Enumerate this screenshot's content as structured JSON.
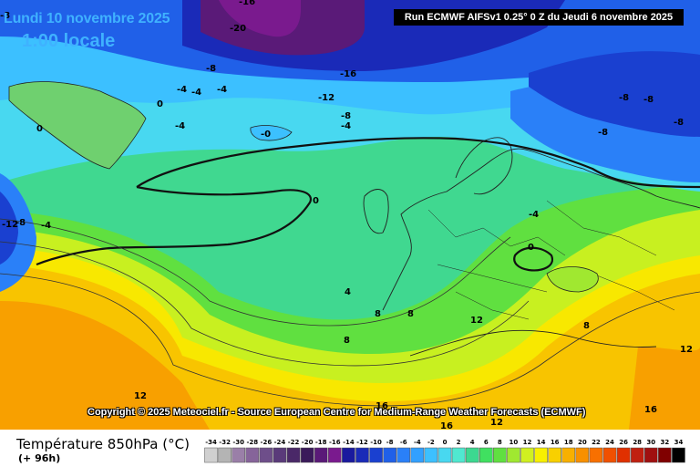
{
  "header": {
    "date": "Lundi 10 novembre 2025",
    "local_time": "1:00 locale",
    "run_info": "Run ECMWF AIFSv1 0.25° 0 Z du Jeudi 6 novembre 2025"
  },
  "copyright": "Copyright © 2025 Meteociel.fr - Source European Centre for Medium-Range Weather Forecasts (ECMWF)",
  "footer": {
    "variable": "Température 850hPa (°C)",
    "lead": "(+ 96h)"
  },
  "legend": {
    "values": [
      "-34",
      "-32",
      "-30",
      "-28",
      "-26",
      "-24",
      "-22",
      "-20",
      "-18",
      "-16",
      "-14",
      "-12",
      "-10",
      "-8",
      "-6",
      "-4",
      "-2",
      "0",
      "2",
      "4",
      "6",
      "8",
      "10",
      "12",
      "14",
      "16",
      "18",
      "20",
      "22",
      "24",
      "26",
      "28",
      "30",
      "32",
      "34"
    ],
    "colors": [
      "#d0d0d0",
      "#b4b4b4",
      "#9a7fa8",
      "#86649a",
      "#6e4e8a",
      "#5a3a7a",
      "#4a2868",
      "#3a1a5a",
      "#5a1a78",
      "#7a1a8e",
      "#1a1a9e",
      "#1a2ab8",
      "#1a40d0",
      "#2060e8",
      "#2a80f8",
      "#32a0ff",
      "#3cc0ff",
      "#48d8f0",
      "#50e8d0",
      "#3cd890",
      "#40e060",
      "#60e040",
      "#a0e830",
      "#d0f020",
      "#f8f000",
      "#f8d000",
      "#f8b000",
      "#f89000",
      "#f87000",
      "#f05000",
      "#e03000",
      "#c02010",
      "#a01010",
      "#800000",
      "#000000"
    ]
  },
  "map_labels": [
    {
      "text": "-16"
    },
    {
      "text": "-20"
    },
    {
      "text": "-8"
    },
    {
      "text": "-16"
    },
    {
      "text": "-12"
    },
    {
      "text": "-4"
    },
    {
      "text": "-4"
    },
    {
      "text": "-4"
    },
    {
      "text": "0"
    },
    {
      "text": "-4"
    },
    {
      "text": "0"
    },
    {
      "text": "-0"
    },
    {
      "text": "-8"
    },
    {
      "text": "-4"
    },
    {
      "text": "-8"
    },
    {
      "text": "-8"
    },
    {
      "text": "-8"
    },
    {
      "text": "-8"
    },
    {
      "text": "-4"
    },
    {
      "text": "0"
    },
    {
      "text": "0"
    },
    {
      "text": "-12"
    },
    {
      "text": "-8"
    },
    {
      "text": "-4"
    },
    {
      "text": "4"
    },
    {
      "text": "8"
    },
    {
      "text": "8"
    },
    {
      "text": "8"
    },
    {
      "text": "12"
    },
    {
      "text": "12"
    },
    {
      "text": "16"
    },
    {
      "text": "16"
    },
    {
      "text": "12"
    },
    {
      "text": "16"
    },
    {
      "text": "8"
    },
    {
      "text": "12"
    },
    {
      "text": "-8"
    }
  ]
}
